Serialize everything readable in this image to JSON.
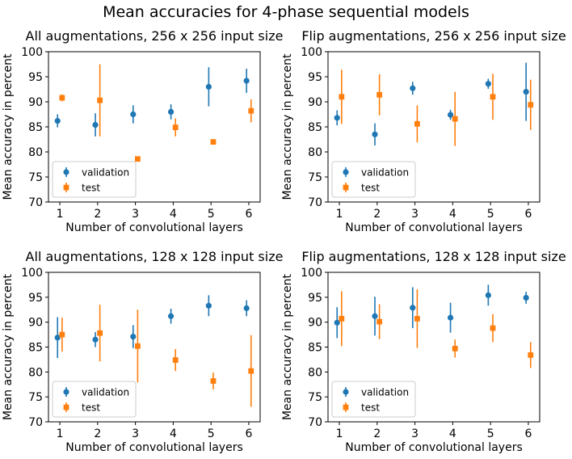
{
  "suptitle": "Mean accuracies for 4-phase sequential models",
  "chart_data": [
    {
      "type": "errorbar",
      "title": "All augmentations, 256 x 256 input size",
      "xlabel": "Number of convolutional layers",
      "ylabel": "Mean accuracy in percent",
      "x": [
        1,
        2,
        3,
        4,
        5,
        6
      ],
      "xlim": [
        0.7,
        6.3
      ],
      "ylim": [
        70,
        100
      ],
      "yticks": [
        70,
        75,
        80,
        85,
        90,
        95,
        100
      ],
      "legend_position": "lower-left",
      "series": [
        {
          "name": "validation",
          "marker": "circle",
          "color": "#1f77b4",
          "values": [
            86.2,
            85.4,
            87.5,
            88.0,
            93.0,
            94.2
          ],
          "err": [
            1.3,
            2.3,
            1.8,
            1.5,
            3.9,
            2.4
          ]
        },
        {
          "name": "test",
          "marker": "square",
          "color": "#ff7f0e",
          "values": [
            90.8,
            90.3,
            78.6,
            84.9,
            82.0,
            88.2
          ],
          "err": [
            0.7,
            7.2,
            0.0,
            1.8,
            0.0,
            2.3
          ]
        }
      ]
    },
    {
      "type": "errorbar",
      "title": "Flip augmentations, 256 x 256 input size",
      "xlabel": "Number of convolutional layers",
      "ylabel": "Mean accuracy in percent",
      "x": [
        1,
        2,
        3,
        4,
        5,
        6
      ],
      "xlim": [
        0.7,
        6.3
      ],
      "ylim": [
        70,
        100
      ],
      "yticks": [
        70,
        75,
        80,
        85,
        90,
        95,
        100
      ],
      "legend_position": "lower-left",
      "series": [
        {
          "name": "validation",
          "marker": "circle",
          "color": "#1f77b4",
          "values": [
            86.8,
            83.5,
            92.7,
            87.4,
            93.6,
            92.0
          ],
          "err": [
            1.5,
            2.2,
            1.3,
            1.0,
            1.0,
            5.8
          ]
        },
        {
          "name": "test",
          "marker": "square",
          "color": "#ff7f0e",
          "values": [
            91.0,
            91.4,
            85.6,
            86.6,
            91.0,
            89.4
          ],
          "err": [
            5.4,
            4.1,
            3.7,
            5.4,
            4.6,
            5.0
          ]
        }
      ]
    },
    {
      "type": "errorbar",
      "title": "All augmentations, 128 x 128 input size",
      "xlabel": "Number of convolutional layers",
      "ylabel": "Mean accuracy in percent",
      "x": [
        1,
        2,
        3,
        4,
        5,
        6
      ],
      "xlim": [
        0.7,
        6.3
      ],
      "ylim": [
        70,
        100
      ],
      "yticks": [
        70,
        75,
        80,
        85,
        90,
        95,
        100
      ],
      "legend_position": "lower-left",
      "series": [
        {
          "name": "validation",
          "marker": "circle",
          "color": "#1f77b4",
          "values": [
            86.9,
            86.5,
            87.1,
            91.2,
            93.3,
            92.8
          ],
          "err": [
            4.1,
            1.5,
            2.3,
            1.5,
            2.1,
            1.6
          ]
        },
        {
          "name": "test",
          "marker": "square",
          "color": "#ff7f0e",
          "values": [
            87.5,
            87.8,
            85.2,
            82.4,
            78.2,
            80.2
          ],
          "err": [
            3.4,
            5.7,
            7.3,
            2.2,
            1.7,
            7.2
          ]
        }
      ]
    },
    {
      "type": "errorbar",
      "title": "Flip augmentations, 128 x 128 input size",
      "xlabel": "Number of convolutional layers",
      "ylabel": "Mean accuracy in percent",
      "x": [
        1,
        2,
        3,
        4,
        5,
        6
      ],
      "xlim": [
        0.7,
        6.3
      ],
      "ylim": [
        70,
        100
      ],
      "yticks": [
        70,
        75,
        80,
        85,
        90,
        95,
        100
      ],
      "legend_position": "lower-left",
      "series": [
        {
          "name": "validation",
          "marker": "circle",
          "color": "#1f77b4",
          "values": [
            89.9,
            91.2,
            92.9,
            90.9,
            95.4,
            94.9
          ],
          "err": [
            3.1,
            3.9,
            4.1,
            3.0,
            2.1,
            1.2
          ]
        },
        {
          "name": "test",
          "marker": "square",
          "color": "#ff7f0e",
          "values": [
            90.7,
            90.1,
            90.7,
            84.7,
            88.8,
            83.4
          ],
          "err": [
            5.5,
            3.5,
            5.9,
            1.8,
            2.8,
            2.6
          ]
        }
      ]
    }
  ]
}
